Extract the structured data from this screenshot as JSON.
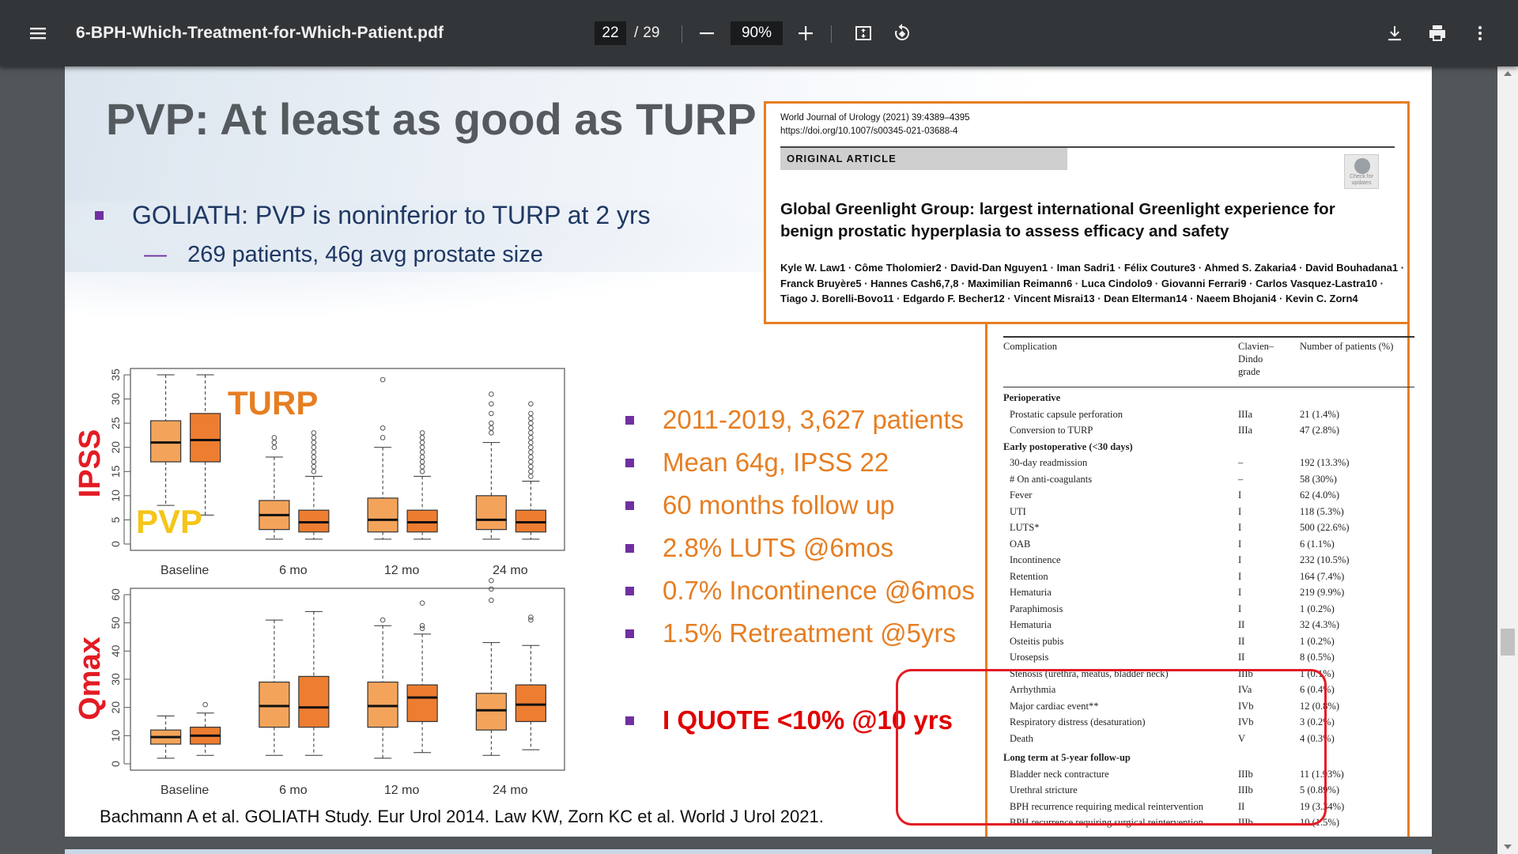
{
  "toolbar": {
    "doc_title": "6-BPH-Which-Treatment-for-Which-Patient.pdf",
    "page_current": "22",
    "page_sep": "/",
    "page_total": "29",
    "zoom": "90%"
  },
  "slide": {
    "title": "PVP: At least as good as TURP",
    "bullet": "GOLIATH: PVP is noninferior to TURP at 2 yrs",
    "sub_bullet": "269 patients, 46g avg prostate size",
    "stats": [
      "2011-2019, 3,627 patients",
      "Mean 64g, IPSS 22",
      "60 months follow up",
      "2.8% LUTS @6mos",
      "0.7% Incontinence @6mos",
      "1.5% Retreatment @5yrs"
    ],
    "quote": "I QUOTE <10% @10 yrs",
    "citation": "Bachmann A et al. GOLIATH Study. Eur Urol 2014.   Law KW, Zorn KC et al. World J Urol 2021."
  },
  "article": {
    "journal_line1": "World Journal of Urology (2021) 39:4389–4395",
    "journal_line2": "https://doi.org/10.1007/s00345-021-03688-4",
    "section": "ORIGINAL ARTICLE",
    "check_badge": "Check for updates",
    "title": "Global Greenlight Group: largest international Greenlight experience for benign prostatic hyperplasia to assess efficacy and safety",
    "authors": "Kyle W. Law1 · Côme Tholomier2 · David-Dan Nguyen1 · Iman Sadri1 · Félix Couture3 · Ahmed S. Zakaria4 · David Bouhadana1 · Franck Bruyère5 · Hannes Cash6,7,8 · Maximilian Reimann6 · Luca Cindolo9 · Giovanni Ferrari9 · Carlos Vasquez-Lastra10 · Tiago J. Borelli-Bovo11 · Edgardo F. Becher12 · Vincent Misrai13 · Dean Elterman14 · Naeem Bhojani4 · Kevin C. Zorn4"
  },
  "table": {
    "headers": {
      "complication": "Complication",
      "grade": "Clavien–\nDindo\ngrade",
      "patients": "Number of patients (%)"
    },
    "rows": [
      {
        "type": "section",
        "label": "Perioperative",
        "grade": "",
        "n": ""
      },
      {
        "type": "item",
        "label": "Prostatic capsule perforation",
        "grade": "IIIa",
        "n": "21 (1.4%)"
      },
      {
        "type": "item",
        "label": "Conversion to TURP",
        "grade": "IIIa",
        "n": "47 (2.8%)"
      },
      {
        "type": "section",
        "label": "Early postoperative (<30 days)",
        "grade": "",
        "n": ""
      },
      {
        "type": "item",
        "label": "30-day readmission",
        "grade": "–",
        "n": "192 (13.3%)"
      },
      {
        "type": "item",
        "label": "# On anti-coagulants",
        "grade": "–",
        "n": "58 (30%)"
      },
      {
        "type": "item",
        "label": "Fever",
        "grade": "I",
        "n": "62 (4.0%)"
      },
      {
        "type": "item",
        "label": "UTI",
        "grade": "I",
        "n": "118 (5.3%)"
      },
      {
        "type": "item",
        "label": "LUTS*",
        "grade": "I",
        "n": "500 (22.6%)"
      },
      {
        "type": "item",
        "label": "OAB",
        "grade": "I",
        "n": "6 (1.1%)"
      },
      {
        "type": "item",
        "label": "Incontinence",
        "grade": "I",
        "n": "232 (10.5%)"
      },
      {
        "type": "item",
        "label": "Retention",
        "grade": "I",
        "n": "164 (7.4%)"
      },
      {
        "type": "item",
        "label": "Hematuria",
        "grade": "I",
        "n": "219 (9.9%)"
      },
      {
        "type": "item",
        "label": "Paraphimosis",
        "grade": "I",
        "n": "1 (0.2%)"
      },
      {
        "type": "item",
        "label": "Hematuria",
        "grade": "II",
        "n": "32 (4.3%)"
      },
      {
        "type": "item",
        "label": "Osteitis pubis",
        "grade": "II",
        "n": "1 (0.2%)"
      },
      {
        "type": "item",
        "label": "Urosepsis",
        "grade": "II",
        "n": "8 (0.5%)"
      },
      {
        "type": "item",
        "label": "Stenosis (urethra, meatus, bladder neck)",
        "grade": "IIIb",
        "n": "1 (0.1%)"
      },
      {
        "type": "item",
        "label": "Arrhythmia",
        "grade": "IVa",
        "n": "6 (0.4%)"
      },
      {
        "type": "item",
        "label": "Major cardiac event**",
        "grade": "IVb",
        "n": "12 (0.8%)"
      },
      {
        "type": "item",
        "label": "Respiratory distress (desaturation)",
        "grade": "IVb",
        "n": "3 (0.2%)"
      },
      {
        "type": "item",
        "label": "Death",
        "grade": "V",
        "n": "4 (0.3%)"
      },
      {
        "type": "section",
        "label": "Long term at 5-year follow-up",
        "grade": "",
        "n": ""
      },
      {
        "type": "item",
        "label": "Bladder neck contracture",
        "grade": "IIIb",
        "n": "11 (1.93%)"
      },
      {
        "type": "item",
        "label": "Urethral stricture",
        "grade": "IIIb",
        "n": "5 (0.89%)"
      },
      {
        "type": "item",
        "label": "BPH recurrence requiring medical reintervention",
        "grade": "II",
        "n": "19 (3.34%)"
      },
      {
        "type": "item",
        "label": "BPH recurrence requiring surgical reintervention",
        "grade": "IIIb",
        "n": "10 (1.5%)"
      }
    ]
  },
  "chart_data": [
    {
      "type": "boxplot",
      "ylabel": "IPSS",
      "ylim": [
        0,
        35
      ],
      "yticks": [
        0,
        5,
        10,
        15,
        20,
        25,
        30,
        35
      ],
      "categories": [
        "Baseline",
        "6 mo",
        "12 mo",
        "24 mo"
      ],
      "series": [
        {
          "name": "PVP",
          "color": "#f4a45a",
          "boxes": [
            {
              "min": 8,
              "q1": 17,
              "median": 21,
              "q3": 25.5,
              "max": 35,
              "outliers": []
            },
            {
              "min": 1,
              "q1": 3,
              "median": 6,
              "q3": 9,
              "max": 18,
              "outliers": [
                20,
                21,
                22
              ]
            },
            {
              "min": 1,
              "q1": 2.5,
              "median": 5,
              "q3": 9.5,
              "max": 20,
              "outliers": [
                22,
                24,
                34
              ]
            },
            {
              "min": 1,
              "q1": 3,
              "median": 5,
              "q3": 10,
              "max": 21,
              "outliers": [
                23,
                24,
                25,
                27,
                29,
                31
              ]
            }
          ]
        },
        {
          "name": "TURP",
          "color": "#ed7d31",
          "boxes": [
            {
              "min": 6,
              "q1": 17,
              "median": 21.5,
              "q3": 27,
              "max": 35,
              "outliers": []
            },
            {
              "min": 1,
              "q1": 2.5,
              "median": 4.5,
              "q3": 7,
              "max": 14,
              "outliers": [
                15,
                16,
                17,
                18,
                19,
                20,
                21,
                22,
                23
              ]
            },
            {
              "min": 1,
              "q1": 2.5,
              "median": 4.5,
              "q3": 7,
              "max": 14,
              "outliers": [
                15,
                16,
                17,
                18,
                19,
                20,
                21,
                22,
                23
              ]
            },
            {
              "min": 1,
              "q1": 2.5,
              "median": 4.5,
              "q3": 7,
              "max": 13,
              "outliers": [
                14,
                15,
                16,
                17,
                18,
                19,
                20,
                21,
                22,
                23,
                24,
                25,
                26,
                27,
                29
              ]
            }
          ]
        }
      ],
      "annotations": [
        "TURP",
        "PVP"
      ]
    },
    {
      "type": "boxplot",
      "ylabel": "Qmax",
      "ylim": [
        0,
        60
      ],
      "yticks": [
        0,
        10,
        20,
        30,
        40,
        50,
        60
      ],
      "categories": [
        "Baseline",
        "6 mo",
        "12 mo",
        "24 mo"
      ],
      "series": [
        {
          "name": "PVP",
          "color": "#f4a45a",
          "boxes": [
            {
              "min": 2,
              "q1": 7,
              "median": 9.5,
              "q3": 12,
              "max": 17,
              "outliers": []
            },
            {
              "min": 3,
              "q1": 13,
              "median": 20.5,
              "q3": 29,
              "max": 51,
              "outliers": []
            },
            {
              "min": 2,
              "q1": 13,
              "median": 20.5,
              "q3": 29,
              "max": 49,
              "outliers": [
                51
              ]
            },
            {
              "min": 3,
              "q1": 12,
              "median": 19,
              "q3": 25,
              "max": 43,
              "outliers": [
                58,
                62,
                65
              ]
            }
          ]
        },
        {
          "name": "TURP",
          "color": "#ed7d31",
          "boxes": [
            {
              "min": 3,
              "q1": 7,
              "median": 10,
              "q3": 13,
              "max": 18,
              "outliers": [
                21
              ]
            },
            {
              "min": 3,
              "q1": 13,
              "median": 20,
              "q3": 31,
              "max": 54,
              "outliers": []
            },
            {
              "min": 4,
              "q1": 15,
              "median": 23.5,
              "q3": 28,
              "max": 46,
              "outliers": [
                48,
                49,
                57
              ]
            },
            {
              "min": 5,
              "q1": 15,
              "median": 21,
              "q3": 28,
              "max": 42,
              "outliers": [
                51,
                52
              ]
            }
          ]
        }
      ]
    }
  ]
}
